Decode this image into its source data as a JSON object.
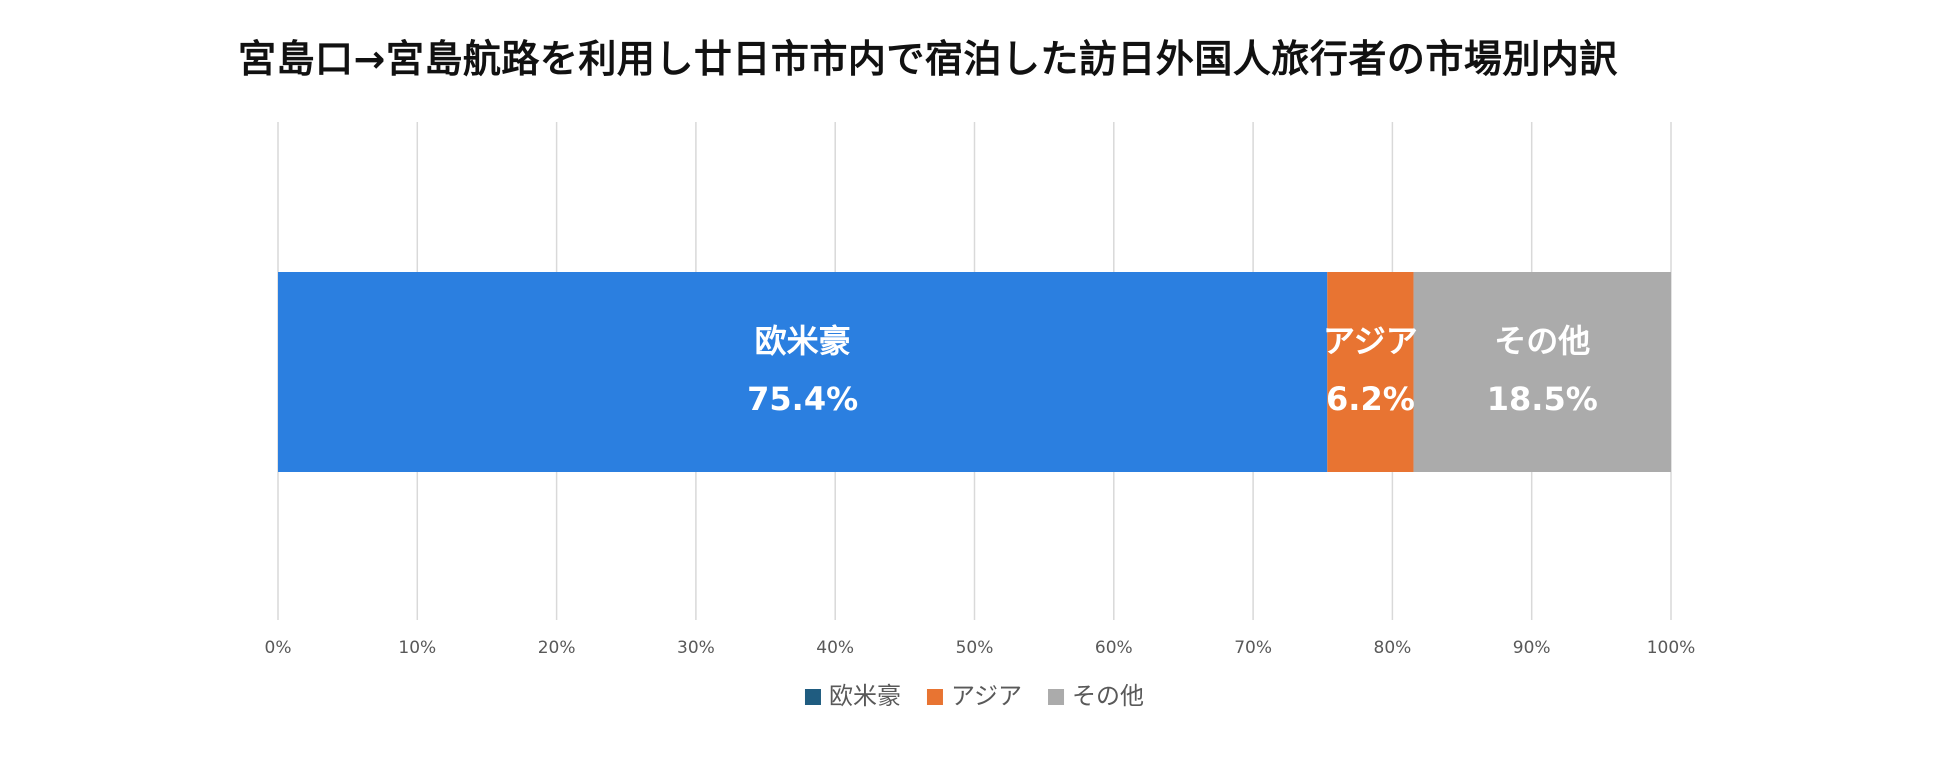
{
  "chart_data": {
    "type": "bar",
    "orientation": "horizontal",
    "stacked": "percent",
    "title": "宮島口→宮島航路を利用し廿日市市内で宿泊した訪日外国人旅行者の市場別内訳",
    "xlim": [
      0,
      100
    ],
    "x_ticks": [
      "0%",
      "10%",
      "20%",
      "30%",
      "40%",
      "50%",
      "60%",
      "70%",
      "80%",
      "90%",
      "100%"
    ],
    "grid": true,
    "legend_position": "bottom",
    "series": [
      {
        "name": "欧米豪",
        "value": 75.4,
        "value_label": "75.4%",
        "color": "#2B7FE0",
        "legend_color": "#1F5C80"
      },
      {
        "name": "アジア",
        "value": 6.2,
        "value_label": "6.2%",
        "color": "#E87432",
        "legend_color": "#E87432"
      },
      {
        "name": "その他",
        "value": 18.5,
        "value_label": "18.5%",
        "color": "#ABABAB",
        "legend_color": "#ABABAB"
      }
    ]
  }
}
